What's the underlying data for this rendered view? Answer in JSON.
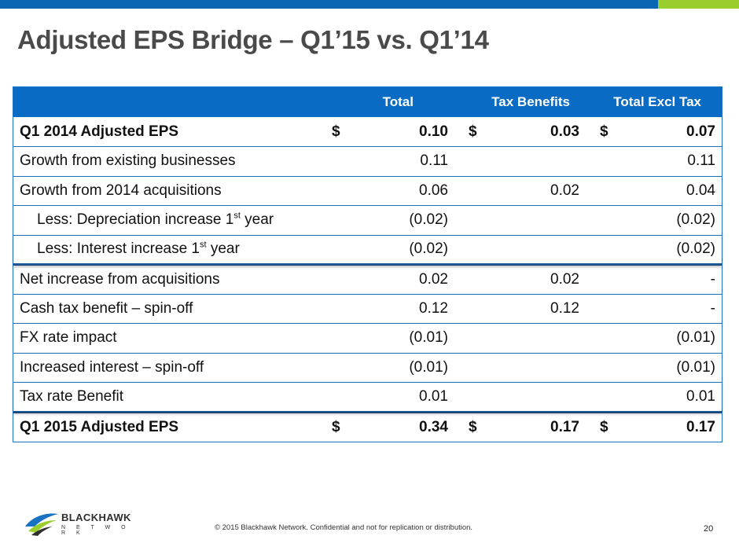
{
  "slide": {
    "title": "Adjusted EPS Bridge – Q1’15 vs. Q1’14",
    "footer": "© 2015 Blackhawk Network. Confidential and not for replication or distribution.",
    "page_number": "20",
    "logo": {
      "word": "BLACKHAWK",
      "sub": "N E T W O R K"
    }
  },
  "colors": {
    "brand_blue": "#0a66b3",
    "accent_green": "#9acd2e"
  },
  "table": {
    "headers": [
      "",
      "Total",
      "Tax Benefits",
      "Total Excl Tax"
    ],
    "rows": [
      {
        "label": "Q1 2014 Adjusted EPS",
        "total": "0.10",
        "tax": "0.03",
        "excl": "0.07",
        "currency": "$"
      },
      {
        "label": "Growth from existing businesses",
        "total": "0.11",
        "tax": "",
        "excl": "0.11"
      },
      {
        "label": "Growth from 2014 acquisitions",
        "total": "0.06",
        "tax": "0.02",
        "excl": "0.04"
      },
      {
        "label_pre": "Less: Depreciation increase 1",
        "label_sup": "st",
        "label_post": " year",
        "total": "(0.02)",
        "tax": "",
        "excl": "(0.02)"
      },
      {
        "label_pre": "Less: Interest increase 1",
        "label_sup": "st",
        "label_post": " year",
        "total": "(0.02)",
        "tax": "",
        "excl": "(0.02)"
      },
      {
        "label": "Net increase from acquisitions",
        "total": "0.02",
        "tax": "0.02",
        "excl": "-"
      },
      {
        "label": "Cash tax benefit – spin-off",
        "total": "0.12",
        "tax": "0.12",
        "excl": "-"
      },
      {
        "label": "FX rate impact",
        "total": "(0.01)",
        "tax": "",
        "excl": "(0.01)"
      },
      {
        "label": "Increased interest – spin-off",
        "total": "(0.01)",
        "tax": "",
        "excl": "(0.01)"
      },
      {
        "label": "Tax rate Benefit",
        "total": "0.01",
        "tax": "",
        "excl": "0.01"
      },
      {
        "label": "Q1 2015 Adjusted EPS",
        "total": "0.34",
        "tax": "0.17",
        "excl": "0.17",
        "currency": "$"
      }
    ]
  }
}
